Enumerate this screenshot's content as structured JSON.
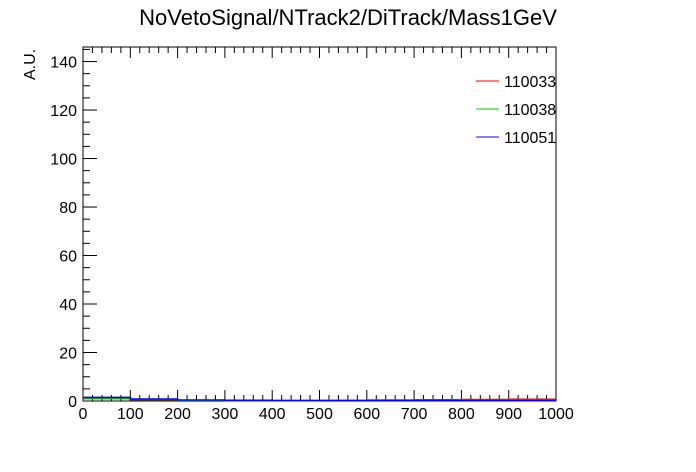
{
  "chart_data": {
    "type": "line",
    "title": "NoVetoSignal/NTrack2/DiTrack/Mass1GeV",
    "xlabel": "",
    "ylabel": "A.U.",
    "xlim": [
      0,
      1000
    ],
    "ylim": [
      0,
      146
    ],
    "x_ticks": [
      "0",
      "100",
      "200",
      "300",
      "400",
      "500",
      "600",
      "700",
      "800",
      "900",
      "1000"
    ],
    "y_ticks": [
      "0",
      "20",
      "40",
      "60",
      "80",
      "100",
      "120",
      "140"
    ],
    "legend_position": "top-right",
    "grid": false,
    "series": [
      {
        "name": "110033",
        "color": "#ff0000",
        "x": [
          0,
          100,
          200,
          300,
          400,
          500,
          600,
          700,
          800,
          900,
          1000
        ],
        "values": [
          1.0,
          0.5,
          0.3,
          0.2,
          0.2,
          0.3,
          0.4,
          0.5,
          0.6,
          0.7,
          0.7
        ]
      },
      {
        "name": "110038",
        "color": "#00cc00",
        "x": [
          0,
          100,
          200,
          300,
          400,
          500,
          600,
          700,
          800,
          900,
          1000
        ],
        "values": [
          1.2,
          0.6,
          0.3,
          0.2,
          0.1,
          0.1,
          0.1,
          0.1,
          0.1,
          0.1,
          0.1
        ]
      },
      {
        "name": "110051",
        "color": "#0000ff",
        "x": [
          0,
          100,
          200,
          300,
          400,
          500,
          600,
          700,
          800,
          900,
          1000
        ],
        "values": [
          1.5,
          0.8,
          0.4,
          0.3,
          0.2,
          0.1,
          0.1,
          0.1,
          0.1,
          0.1,
          0.1
        ]
      }
    ]
  }
}
